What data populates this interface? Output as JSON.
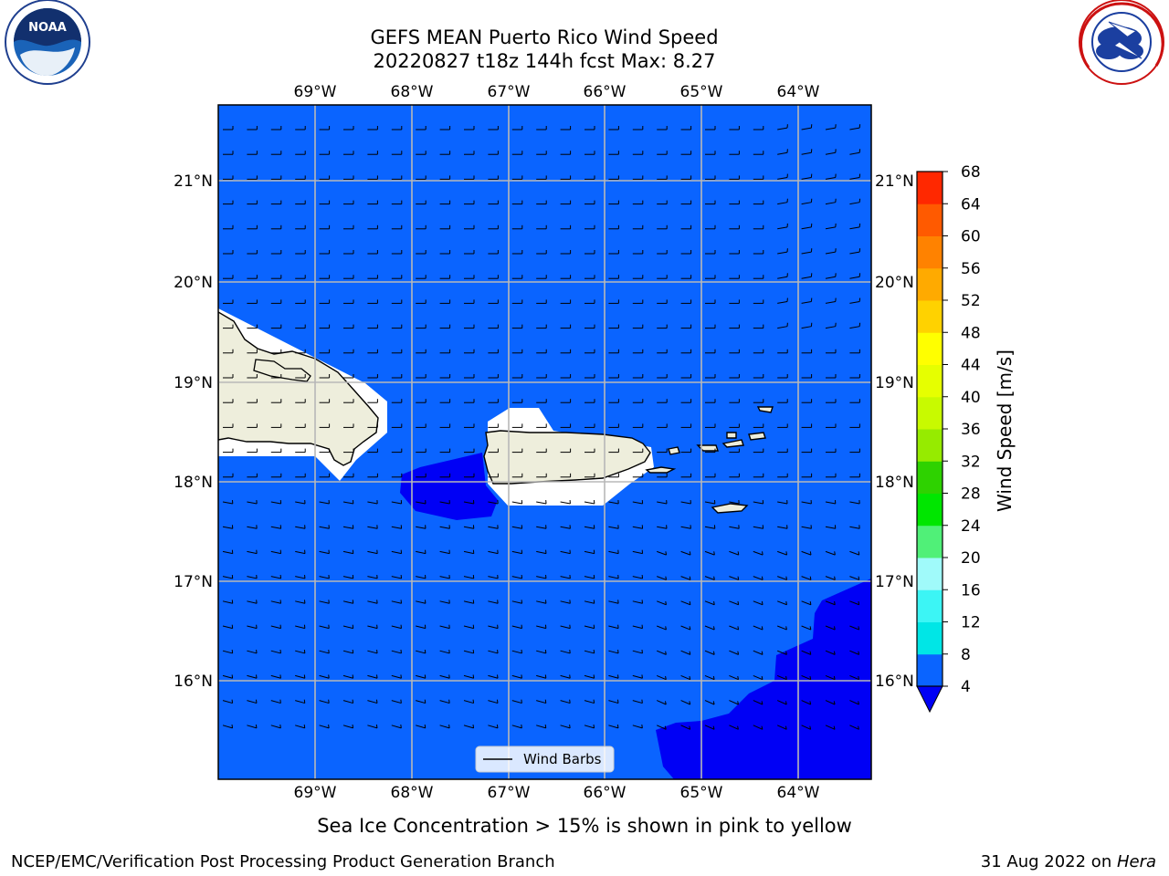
{
  "title": {
    "line1": "GEFS MEAN Puerto Rico Wind Speed",
    "line2": "20220827 t18z 144h fcst   Max: 8.27"
  },
  "map": {
    "lon_ticks": [
      "69°W",
      "68°W",
      "67°W",
      "66°W",
      "65°W",
      "64°W"
    ],
    "lat_ticks_left": [
      "21°N",
      "20°N",
      "19°N",
      "18°N",
      "17°N",
      "16°N"
    ],
    "lat_ticks_right": [
      "21°N",
      "20°N",
      "19°N",
      "18°N",
      "17°N",
      "16°N"
    ],
    "legend_label": "Wind Barbs",
    "ocean_color": "#0a64ff",
    "calm_color": "#0000f5",
    "land_color": "#eeeedc"
  },
  "colorbar": {
    "label": "Wind Speed [m/s]",
    "ticks": [
      "4",
      "8",
      "12",
      "16",
      "20",
      "24",
      "28",
      "32",
      "36",
      "40",
      "44",
      "48",
      "52",
      "56",
      "60",
      "64",
      "68"
    ],
    "colors": [
      "#0a64ff",
      "#00e6e6",
      "#3cf5f5",
      "#a0fafa",
      "#50f078",
      "#00e600",
      "#2ed200",
      "#96eb00",
      "#c8fa00",
      "#e6ff00",
      "#ffff00",
      "#ffd200",
      "#ffaa00",
      "#ff8200",
      "#ff5a00",
      "#ff2800"
    ],
    "under_color": "#0000f5"
  },
  "note": "Sea Ice Concentration > 15% is shown in pink to yellow",
  "footer": {
    "left": "NCEP/EMC/Verification Post Processing Product Generation Branch",
    "date": "31 Aug 2022 on ",
    "machine": "Hera"
  },
  "logos": {
    "noaa": "NOAA",
    "nws": "NATIONAL WEATHER SERVICE"
  }
}
